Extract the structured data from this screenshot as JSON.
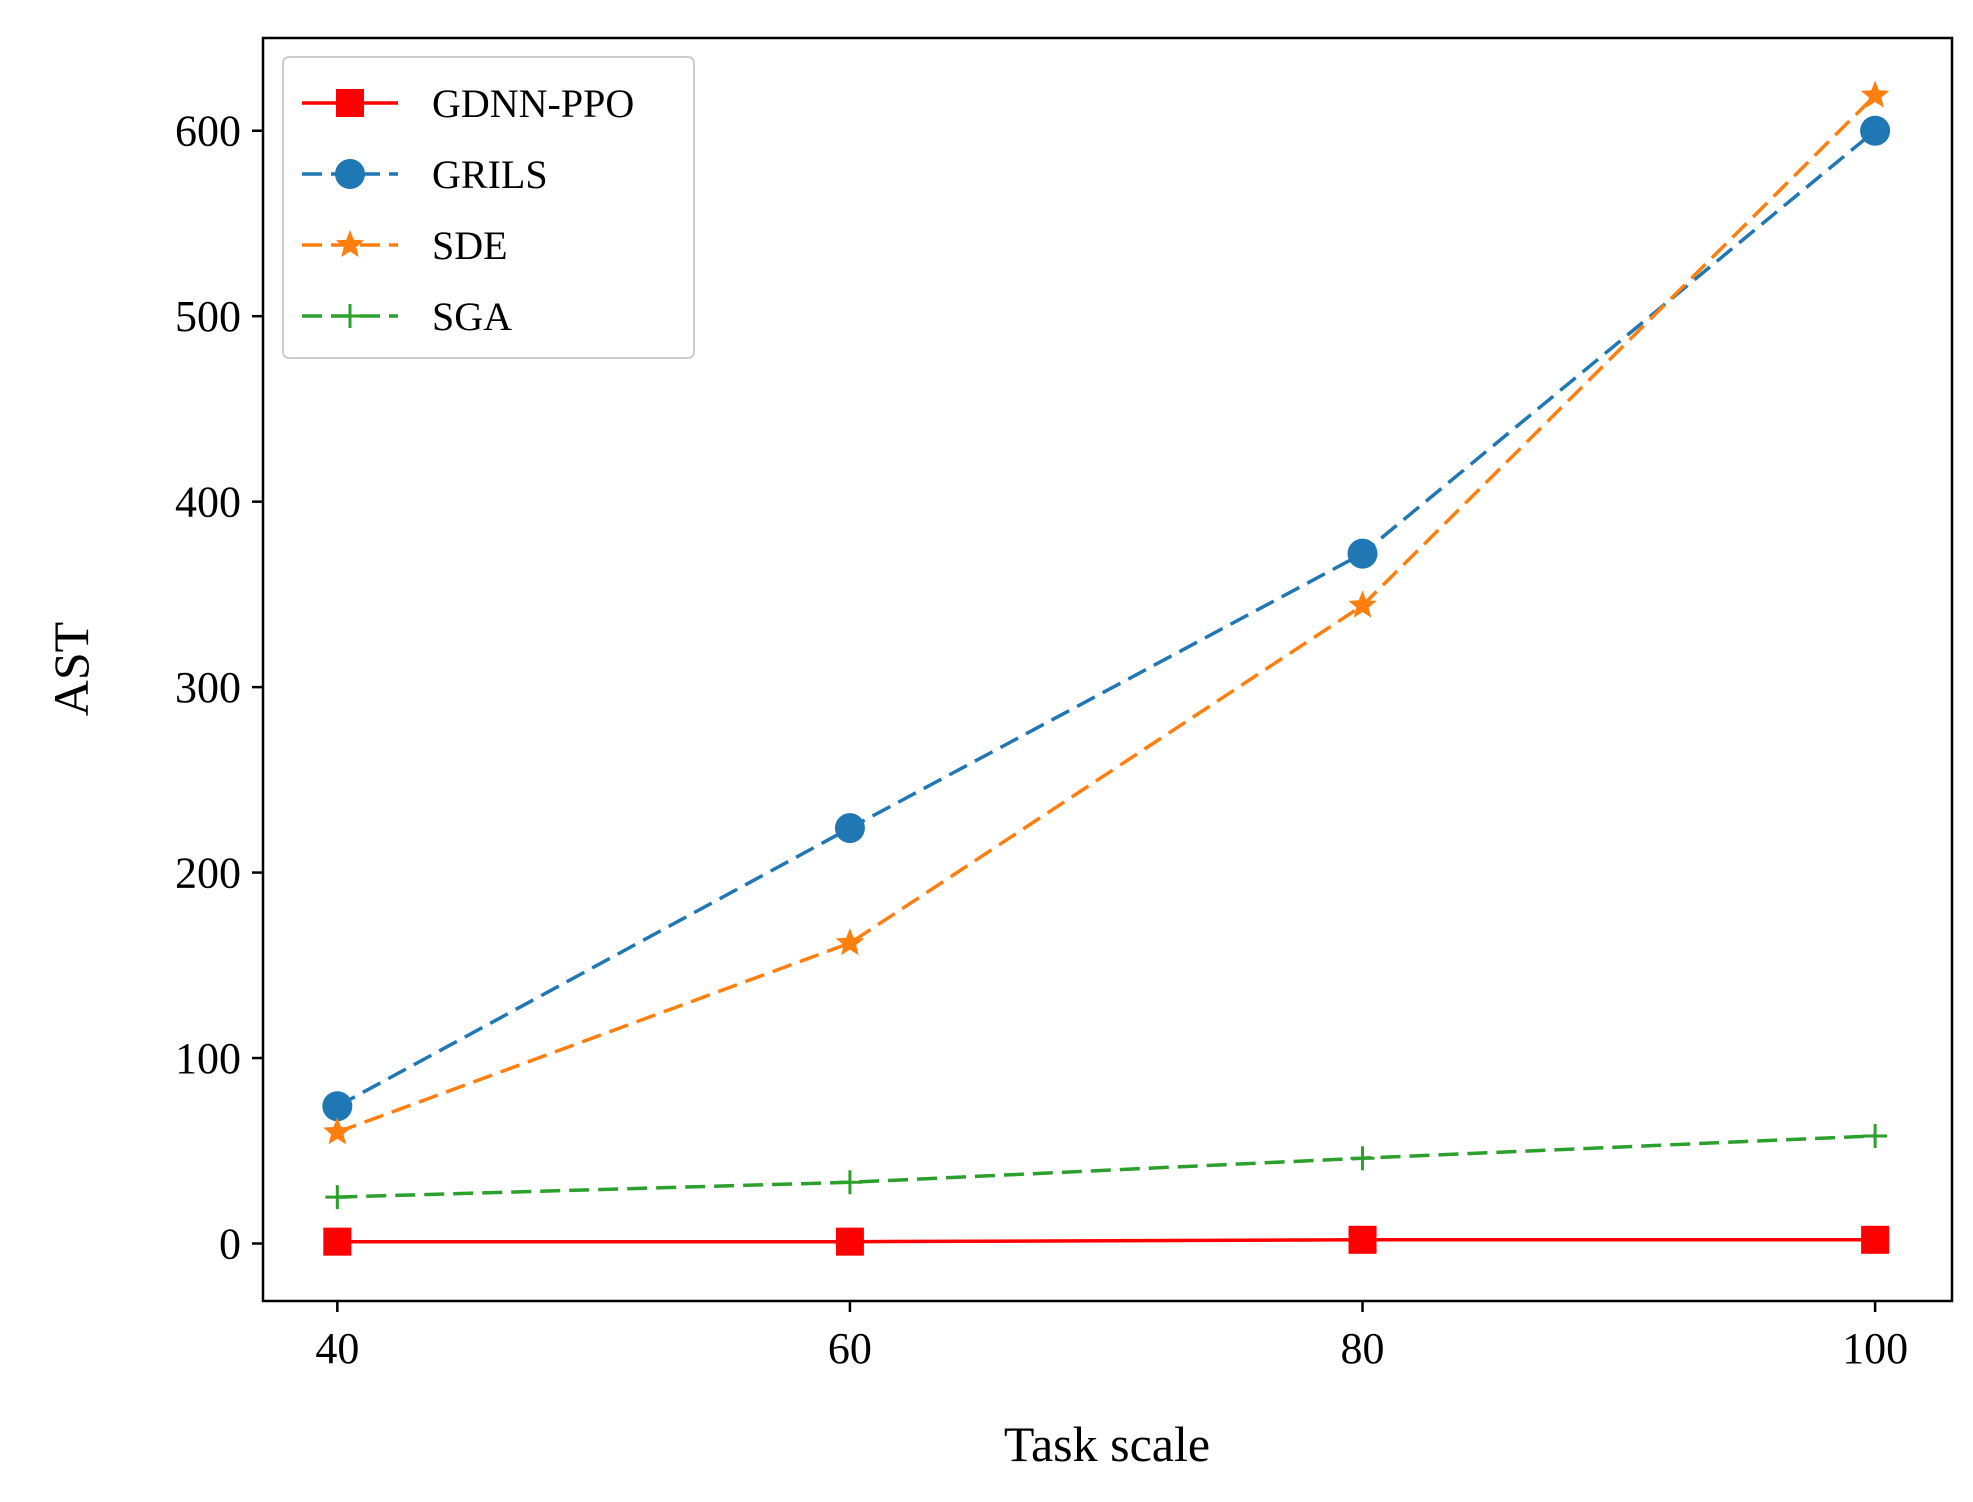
{
  "chart_data": {
    "type": "line",
    "title": "",
    "xlabel": "Task scale",
    "ylabel": "AST",
    "x": [
      40,
      60,
      80,
      100
    ],
    "xticks": [
      40,
      60,
      80,
      100
    ],
    "yticks": [
      0,
      100,
      200,
      300,
      400,
      500,
      600
    ],
    "xlim": [
      37.1,
      103
    ],
    "ylim": [
      -31,
      650
    ],
    "grid": false,
    "legend_position": "top-left",
    "series": [
      {
        "name": "GDNN-PPO",
        "values": [
          1,
          1,
          2,
          2
        ],
        "color": "#ff0000",
        "linestyle": "solid",
        "marker": "square"
      },
      {
        "name": "GRILS",
        "values": [
          74,
          224,
          372,
          600
        ],
        "color": "#1f77b4",
        "linestyle": "dashed",
        "marker": "circle"
      },
      {
        "name": "SDE",
        "values": [
          60,
          162,
          344,
          619
        ],
        "color": "#ff7f0e",
        "linestyle": "dashed",
        "marker": "star"
      },
      {
        "name": "SGA",
        "values": [
          25,
          33,
          46,
          58
        ],
        "color": "#2ca02c",
        "linestyle": "dashed",
        "marker": "plus"
      }
    ]
  }
}
